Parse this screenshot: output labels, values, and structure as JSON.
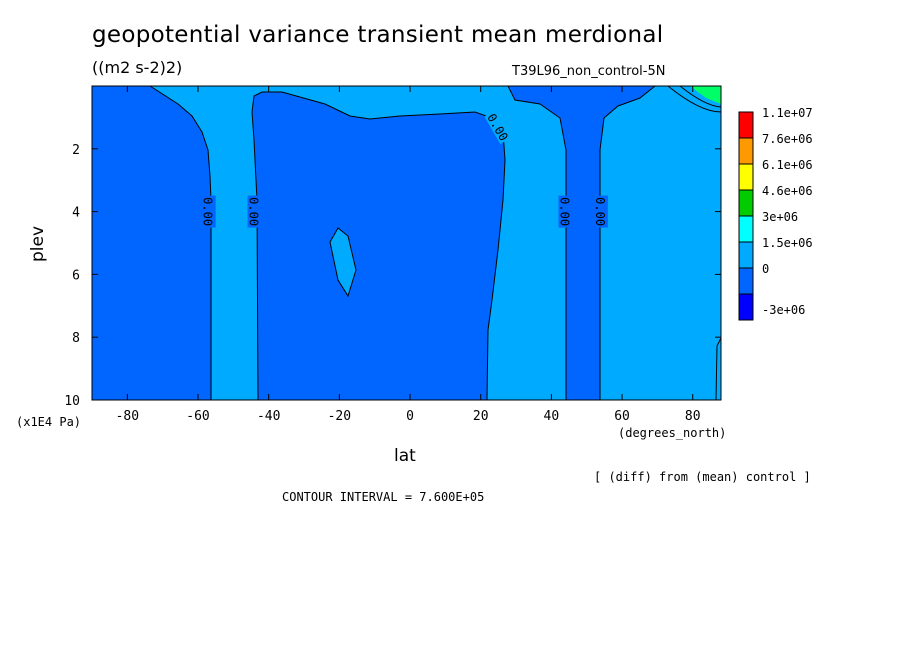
{
  "chart_data": {
    "type": "contour",
    "title": "geopotential variance transient mean merdional",
    "units": "((m2 s-2)2)",
    "run_id": "T39L96_non_control-5N",
    "xlabel": "lat",
    "xunits": "(degrees_north)",
    "ylabel": "plev",
    "yunits": "(x1E4 Pa)",
    "xlim": [
      -90,
      88
    ],
    "ylim": [
      10,
      0
    ],
    "x_ticks": [
      -80,
      -60,
      -40,
      -20,
      0,
      20,
      40,
      60,
      80
    ],
    "x_tick_labels": [
      "-80",
      "-60",
      "-40",
      "-20",
      "0",
      "20",
      "40",
      "60",
      "80"
    ],
    "y_ticks": [
      2,
      4,
      6,
      8,
      10
    ],
    "y_tick_labels": [
      "2",
      "4",
      "6",
      "8",
      "10"
    ],
    "contour_interval_text": "CONTOUR INTERVAL = 7.600E+05",
    "footnote": "[ (diff) from (mean) control ]",
    "contour_labels": [
      "0.00",
      "0.00",
      "0.00",
      "0.00",
      "0.00",
      "0.00"
    ],
    "legend": {
      "levels": [
        "1.1e+07",
        "7.6e+06",
        "6.1e+06",
        "4.6e+06",
        "3e+06",
        "1.5e+06",
        "0",
        "-3e+06"
      ],
      "colors": [
        "#ff0000",
        "#ff9900",
        "#ffff00",
        "#00cc00",
        "#00ffff",
        "#00aaff",
        "#0066ff",
        "#0000ff"
      ]
    },
    "regions": [
      {
        "name": "negative",
        "color": "#0066ff",
        "approx_lat_range": [
          -90,
          -72
        ],
        "plev_range": [
          0,
          10
        ]
      },
      {
        "name": "positive",
        "color": "#00aaff",
        "approx_lat_range": [
          -55,
          -43
        ],
        "plev_range": [
          0,
          10
        ]
      },
      {
        "name": "negative",
        "color": "#0066ff",
        "approx_lat_range": [
          -43,
          23
        ],
        "plev_range": [
          1,
          10
        ]
      },
      {
        "name": "positive-island",
        "color": "#00aaff",
        "approx_lat_range": [
          -21,
          -14
        ],
        "plev_range": [
          4.6,
          6.9
        ]
      },
      {
        "name": "positive",
        "color": "#00aaff",
        "approx_lat_range": [
          23,
          44
        ],
        "plev_range": [
          0,
          10
        ]
      },
      {
        "name": "negative",
        "color": "#0066ff",
        "approx_lat_range": [
          44,
          54
        ],
        "plev_range": [
          0,
          10
        ]
      },
      {
        "name": "positive",
        "color": "#00aaff",
        "approx_lat_range": [
          54,
          88
        ],
        "plev_range": [
          0,
          10
        ]
      },
      {
        "name": "high-values",
        "color": "#00ff66",
        "approx_lat_range": [
          72,
          88
        ],
        "plev_range": [
          0,
          0.6
        ]
      }
    ]
  }
}
